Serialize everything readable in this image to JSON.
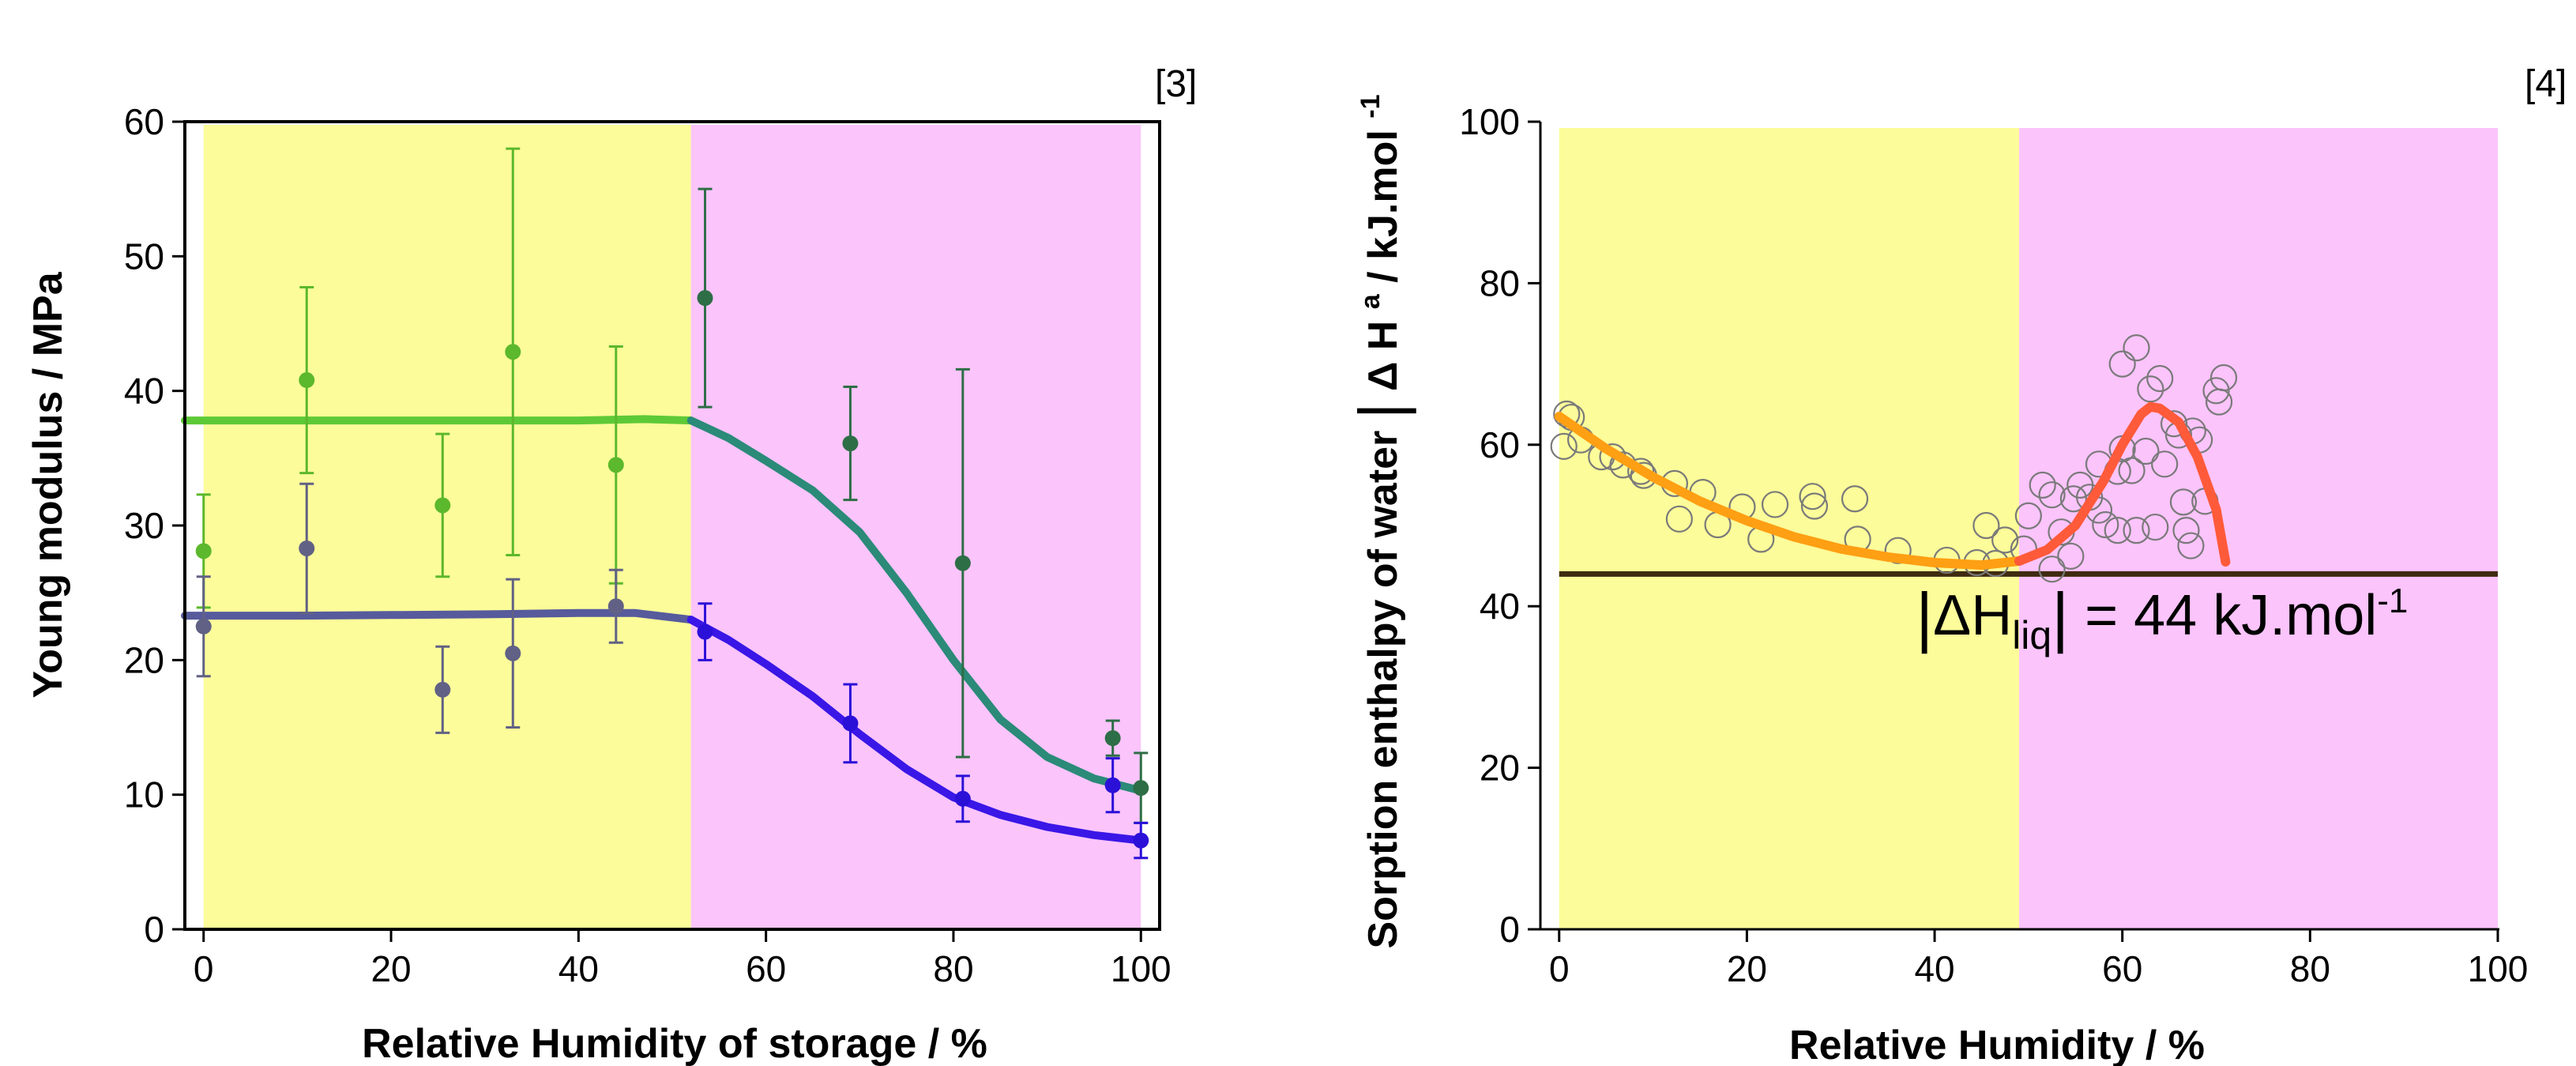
{
  "chart_data": [
    {
      "type": "scatter",
      "ref": "[3]",
      "xlabel": "Relative Humidity of storage / %",
      "ylabel": "Young modulus / MPa",
      "xlim": [
        -2,
        102
      ],
      "ylim": [
        0,
        60
      ],
      "xticks": [
        0,
        20,
        40,
        60,
        80,
        100
      ],
      "yticks": [
        0,
        10,
        20,
        30,
        40,
        50,
        60
      ],
      "grid": false,
      "background_bands": [
        {
          "x": [
            0,
            52
          ],
          "color": "#fcfc9a"
        },
        {
          "x": [
            52,
            100
          ],
          "color": "#fbc4fb"
        }
      ],
      "series": [
        {
          "color": "#5cb82c",
          "style": "points",
          "points": [
            {
              "x": 0,
              "y": 28.1,
              "err": 4.2
            },
            {
              "x": 11,
              "y": 40.8,
              "err": 6.9
            },
            {
              "x": 25.5,
              "y": 31.5,
              "err": 5.3
            },
            {
              "x": 33,
              "y": 42.9,
              "err": 15.1
            },
            {
              "x": 44,
              "y": 34.5,
              "err": 8.8
            }
          ]
        },
        {
          "color": "#2e6e46",
          "style": "points",
          "points": [
            {
              "x": 53.5,
              "y": 46.9,
              "err": 8.1
            },
            {
              "x": 69,
              "y": 36.1,
              "err": 4.2
            },
            {
              "x": 81,
              "y": 27.2,
              "err": 14.4
            },
            {
              "x": 97,
              "y": 14.2,
              "err": 1.3
            },
            {
              "x": 100,
              "y": 10.5,
              "err": 2.6
            }
          ]
        },
        {
          "color": "#616185",
          "style": "points",
          "points": [
            {
              "x": 0,
              "y": 22.5,
              "err": 3.7
            },
            {
              "x": 11,
              "y": 28.3,
              "err": 4.8
            },
            {
              "x": 25.5,
              "y": 17.8,
              "err": 3.2
            },
            {
              "x": 33,
              "y": 20.5,
              "err": 5.5
            },
            {
              "x": 44,
              "y": 24,
              "err": 2.7
            }
          ]
        },
        {
          "color": "#2b10d8",
          "style": "points",
          "points": [
            {
              "x": 53.5,
              "y": 22.1,
              "err": 2.1
            },
            {
              "x": 69,
              "y": 15.3,
              "err": 2.9
            },
            {
              "x": 81,
              "y": 9.7,
              "err": 1.7
            },
            {
              "x": 97,
              "y": 10.7,
              "err": 2
            },
            {
              "x": 100,
              "y": 6.6,
              "err": 1.3
            }
          ]
        },
        {
          "color": "#5ec937",
          "style": "line",
          "points": [
            {
              "x": -2,
              "y": 37.8
            },
            {
              "x": 10,
              "y": 37.8
            },
            {
              "x": 20,
              "y": 37.8
            },
            {
              "x": 30,
              "y": 37.8
            },
            {
              "x": 40,
              "y": 37.8
            },
            {
              "x": 47,
              "y": 37.9
            },
            {
              "x": 52,
              "y": 37.8
            }
          ]
        },
        {
          "color": "#2b8a78",
          "style": "line",
          "points": [
            {
              "x": 52,
              "y": 37.8
            },
            {
              "x": 56,
              "y": 36.5
            },
            {
              "x": 60,
              "y": 34.8
            },
            {
              "x": 65,
              "y": 32.6
            },
            {
              "x": 70,
              "y": 29.5
            },
            {
              "x": 75,
              "y": 25.0
            },
            {
              "x": 80,
              "y": 20.0
            },
            {
              "x": 85,
              "y": 15.6
            },
            {
              "x": 90,
              "y": 12.8
            },
            {
              "x": 95,
              "y": 11.2
            },
            {
              "x": 100,
              "y": 10.3
            }
          ]
        },
        {
          "color": "#575b9c",
          "style": "line",
          "points": [
            {
              "x": -2,
              "y": 23.3
            },
            {
              "x": 10,
              "y": 23.3
            },
            {
              "x": 20,
              "y": 23.35
            },
            {
              "x": 30,
              "y": 23.4
            },
            {
              "x": 40,
              "y": 23.5
            },
            {
              "x": 46,
              "y": 23.5
            },
            {
              "x": 52,
              "y": 23.0
            }
          ]
        },
        {
          "color": "#3a17e6",
          "style": "line",
          "points": [
            {
              "x": 52,
              "y": 23.0
            },
            {
              "x": 56,
              "y": 21.5
            },
            {
              "x": 60,
              "y": 19.7
            },
            {
              "x": 65,
              "y": 17.3
            },
            {
              "x": 70,
              "y": 14.5
            },
            {
              "x": 75,
              "y": 11.9
            },
            {
              "x": 80,
              "y": 9.8
            },
            {
              "x": 85,
              "y": 8.5
            },
            {
              "x": 90,
              "y": 7.6
            },
            {
              "x": 95,
              "y": 7.0
            },
            {
              "x": 100,
              "y": 6.6
            }
          ]
        }
      ]
    },
    {
      "type": "scatter",
      "ref": "[4]",
      "xlabel": "Relative Humidity / %",
      "ylabel_parts": [
        "Sorption enthalpy of water",
        "Δ H",
        "a",
        " / kJ.mol",
        "-1"
      ],
      "annotation": {
        "left": "ΔH",
        "sub": "liq",
        "right": " = 44 kJ.mol",
        "sup": "-1",
        "x": 38,
        "y": 36.5
      },
      "xlim": [
        -2,
        100
      ],
      "ylim": [
        0,
        100
      ],
      "xticks": [
        0,
        20,
        40,
        60,
        80,
        100
      ],
      "yticks": [
        0,
        20,
        40,
        60,
        80,
        100
      ],
      "grid": false,
      "background_bands": [
        {
          "x": [
            0,
            49
          ],
          "color": "#fcfc9a"
        },
        {
          "x": [
            49,
            100
          ],
          "color": "#fbc4fb"
        }
      ],
      "reference_line": {
        "y": 44,
        "label": "|ΔHliq| = 44 kJ.mol-1"
      },
      "series": [
        {
          "style": "markers",
          "marker": "open-circle",
          "color": "#7a7a7a",
          "points": [
            {
              "x": 0.5,
              "y": 59.8
            },
            {
              "x": 0.8,
              "y": 63.8
            },
            {
              "x": 1.3,
              "y": 63.4
            },
            {
              "x": 2.3,
              "y": 60.6
            },
            {
              "x": 4.5,
              "y": 58.5
            },
            {
              "x": 5.7,
              "y": 58.5
            },
            {
              "x": 6.8,
              "y": 57.5
            },
            {
              "x": 8.7,
              "y": 56.7
            },
            {
              "x": 9,
              "y": 56.2
            },
            {
              "x": 12.3,
              "y": 55.2
            },
            {
              "x": 12.8,
              "y": 50.8
            },
            {
              "x": 15.3,
              "y": 54.1
            },
            {
              "x": 16.9,
              "y": 50.1
            },
            {
              "x": 19.5,
              "y": 52.3
            },
            {
              "x": 21.5,
              "y": 48.3
            },
            {
              "x": 23,
              "y": 52.6
            },
            {
              "x": 27,
              "y": 53.6
            },
            {
              "x": 27.2,
              "y": 52.4
            },
            {
              "x": 31.5,
              "y": 53.3
            },
            {
              "x": 31.8,
              "y": 48.3
            },
            {
              "x": 36.1,
              "y": 46.9
            },
            {
              "x": 41.3,
              "y": 45.7
            },
            {
              "x": 44.5,
              "y": 45.4
            },
            {
              "x": 45.5,
              "y": 50
            },
            {
              "x": 46.5,
              "y": 45.3
            },
            {
              "x": 47.5,
              "y": 48.2
            },
            {
              "x": 49.5,
              "y": 47.1
            },
            {
              "x": 50,
              "y": 51.2
            },
            {
              "x": 51.5,
              "y": 55
            },
            {
              "x": 52.5,
              "y": 53.8
            },
            {
              "x": 52.5,
              "y": 44.6
            },
            {
              "x": 53.5,
              "y": 49.2
            },
            {
              "x": 54.5,
              "y": 46.2
            },
            {
              "x": 54.8,
              "y": 53.3
            },
            {
              "x": 55.5,
              "y": 55
            },
            {
              "x": 56.5,
              "y": 53.5
            },
            {
              "x": 57.5,
              "y": 51.9
            },
            {
              "x": 57.5,
              "y": 57.6
            },
            {
              "x": 58.2,
              "y": 50.1
            },
            {
              "x": 59.5,
              "y": 49.4
            },
            {
              "x": 59.5,
              "y": 56.7
            },
            {
              "x": 60,
              "y": 59.5
            },
            {
              "x": 61,
              "y": 56.8
            },
            {
              "x": 61.5,
              "y": 49.4
            },
            {
              "x": 61.5,
              "y": 72
            },
            {
              "x": 60,
              "y": 70
            },
            {
              "x": 62.5,
              "y": 59.2
            },
            {
              "x": 63,
              "y": 66.9
            },
            {
              "x": 63.5,
              "y": 49.8
            },
            {
              "x": 64,
              "y": 68.2
            },
            {
              "x": 64.5,
              "y": 57.6
            },
            {
              "x": 65.5,
              "y": 62.6
            },
            {
              "x": 66,
              "y": 61.2
            },
            {
              "x": 66.5,
              "y": 52.9
            },
            {
              "x": 66.8,
              "y": 49.4
            },
            {
              "x": 67.3,
              "y": 47.5
            },
            {
              "x": 67.5,
              "y": 61.7
            },
            {
              "x": 68.2,
              "y": 60.6
            },
            {
              "x": 68.8,
              "y": 53
            },
            {
              "x": 70,
              "y": 66.7
            },
            {
              "x": 70.3,
              "y": 65.3
            },
            {
              "x": 70.8,
              "y": 68.3
            }
          ]
        },
        {
          "style": "line",
          "color": "#ff9f13",
          "points": [
            {
              "x": 0,
              "y": 63.5
            },
            {
              "x": 5,
              "y": 59.5
            },
            {
              "x": 10,
              "y": 56.0
            },
            {
              "x": 15,
              "y": 53.0
            },
            {
              "x": 20,
              "y": 50.6
            },
            {
              "x": 25,
              "y": 48.6
            },
            {
              "x": 30,
              "y": 47.1
            },
            {
              "x": 35,
              "y": 46.1
            },
            {
              "x": 40,
              "y": 45.4
            },
            {
              "x": 45,
              "y": 45.1
            },
            {
              "x": 49,
              "y": 45.6
            }
          ]
        },
        {
          "style": "line",
          "color": "#ff5a3a",
          "points": [
            {
              "x": 49,
              "y": 45.6
            },
            {
              "x": 52,
              "y": 47.0
            },
            {
              "x": 55,
              "y": 50.0
            },
            {
              "x": 58,
              "y": 55.5
            },
            {
              "x": 60,
              "y": 60.0
            },
            {
              "x": 62,
              "y": 63.8
            },
            {
              "x": 63,
              "y": 64.7
            },
            {
              "x": 64,
              "y": 64.5
            },
            {
              "x": 66,
              "y": 62.8
            },
            {
              "x": 68,
              "y": 58.5
            },
            {
              "x": 70,
              "y": 52.0
            },
            {
              "x": 71,
              "y": 45.5
            }
          ]
        }
      ]
    }
  ]
}
